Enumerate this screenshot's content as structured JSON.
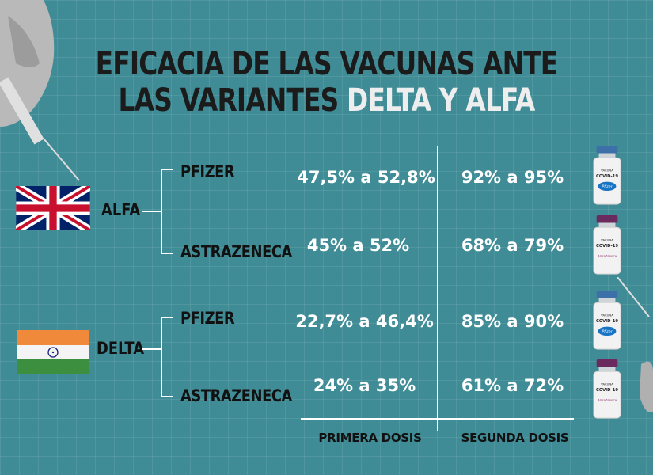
{
  "title": {
    "line1": "EFICACIA DE LAS VACUNAS ANTE",
    "line2_prefix": "LAS VARIANTES ",
    "line2_highlight": "DELTA Y ALFA"
  },
  "variants": [
    {
      "name": "ALFA",
      "flag": "uk-flag-icon",
      "rows": [
        {
          "vaccine": "PFIZER",
          "first_dose": "47,5% a 52,8%",
          "second_dose": "92% a 95%",
          "vial": "pfizer-vial-icon"
        },
        {
          "vaccine": "ASTRAZENECA",
          "first_dose": "45% a 52%",
          "second_dose": "68% a 79%",
          "vial": "astrazeneca-vial-icon"
        }
      ]
    },
    {
      "name": "DELTA",
      "flag": "india-flag-icon",
      "rows": [
        {
          "vaccine": "PFIZER",
          "first_dose": "22,7% a 46,4%",
          "second_dose": "85% a 90%",
          "vial": "pfizer-vial-icon"
        },
        {
          "vaccine": "ASTRAZENECA",
          "first_dose": "24% a 35%",
          "second_dose": "61% a 72%",
          "vial": "astrazeneca-vial-icon"
        }
      ]
    }
  ],
  "columns": {
    "first": "PRIMERA DOSIS",
    "second": "SEGUNDA DOSIS"
  },
  "vial_text": {
    "vacuna": "VACUNA",
    "covid": "COVID-19",
    "pfizer_logo": "Pfizer",
    "az_logo": "AstraZeneca"
  },
  "colors": {
    "background": "#3f8c96",
    "title_dark": "#1b1b1b",
    "title_highlight": "#eeeeee",
    "values": "#ffffff"
  }
}
